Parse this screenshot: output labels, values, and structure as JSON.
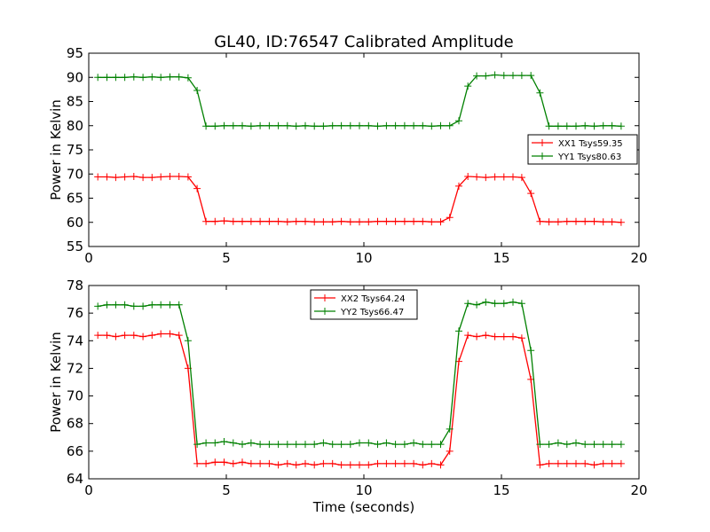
{
  "chart_data": {
    "type": "line",
    "title": "GL40, ID:76547 Calibrated Amplitude",
    "panels": [
      {
        "id": "top",
        "ylabel": "Power in Kelvin",
        "xlabel": "",
        "xlim": [
          0,
          20
        ],
        "ylim": [
          55,
          95
        ],
        "xticks": [
          0,
          5,
          10,
          15,
          20
        ],
        "yticks": [
          55,
          60,
          65,
          70,
          75,
          80,
          85,
          90,
          95
        ],
        "grid": false,
        "legend_position": "center-right",
        "series": [
          {
            "name": "XX1 Tsys59.35",
            "color": "#ff0000",
            "x": [
              0.33,
              0.66,
              0.98,
              1.31,
              1.64,
              1.97,
              2.3,
              2.62,
              2.95,
              3.28,
              3.61,
              3.94,
              4.26,
              4.59,
              4.92,
              5.25,
              5.58,
              5.9,
              6.23,
              6.56,
              6.89,
              7.22,
              7.54,
              7.87,
              8.2,
              8.53,
              8.86,
              9.18,
              9.51,
              9.84,
              10.17,
              10.5,
              10.82,
              11.15,
              11.48,
              11.81,
              12.14,
              12.46,
              12.79,
              13.12,
              13.45,
              13.78,
              14.1,
              14.43,
              14.76,
              15.09,
              15.42,
              15.74,
              16.07,
              16.4,
              16.73,
              17.06,
              17.38,
              17.71,
              18.04,
              18.37,
              18.7,
              19.02,
              19.35
            ],
            "y": [
              69.4,
              69.4,
              69.3,
              69.4,
              69.5,
              69.3,
              69.3,
              69.4,
              69.5,
              69.5,
              69.4,
              67.0,
              60.2,
              60.2,
              60.3,
              60.2,
              60.2,
              60.2,
              60.2,
              60.2,
              60.2,
              60.1,
              60.2,
              60.2,
              60.1,
              60.1,
              60.1,
              60.2,
              60.1,
              60.1,
              60.1,
              60.2,
              60.2,
              60.2,
              60.2,
              60.2,
              60.2,
              60.1,
              60.1,
              61.0,
              67.5,
              69.5,
              69.4,
              69.3,
              69.4,
              69.4,
              69.4,
              69.3,
              66.0,
              60.2,
              60.1,
              60.1,
              60.2,
              60.2,
              60.2,
              60.2,
              60.1,
              60.1,
              60.0
            ],
            "x_order_note": ""
          },
          {
            "name": "YY1 Tsys80.63",
            "color": "#008000",
            "x": [
              0.33,
              0.66,
              0.98,
              1.31,
              1.64,
              1.97,
              2.3,
              2.62,
              2.95,
              3.28,
              3.61,
              3.94,
              4.26,
              4.59,
              4.92,
              5.25,
              5.58,
              5.9,
              6.23,
              6.56,
              6.89,
              7.22,
              7.54,
              7.87,
              8.2,
              8.53,
              8.86,
              9.18,
              9.51,
              9.84,
              10.17,
              10.5,
              10.82,
              11.15,
              11.48,
              11.81,
              12.14,
              12.46,
              12.79,
              13.12,
              13.45,
              13.78,
              14.1,
              14.43,
              14.76,
              15.09,
              15.42,
              15.74,
              16.07,
              16.4,
              16.73,
              17.06,
              17.38,
              17.71,
              18.04,
              18.37,
              18.7,
              19.02,
              19.35
            ],
            "y": [
              90.0,
              90.0,
              90.0,
              90.0,
              90.1,
              90.0,
              90.1,
              90.0,
              90.1,
              90.1,
              89.9,
              87.3,
              79.9,
              79.9,
              80.0,
              80.0,
              80.0,
              79.9,
              80.0,
              80.0,
              80.0,
              80.0,
              79.9,
              80.0,
              79.9,
              79.9,
              80.0,
              80.0,
              80.0,
              80.0,
              80.0,
              79.9,
              80.0,
              80.0,
              80.0,
              80.0,
              80.0,
              79.9,
              80.0,
              80.0,
              81.0,
              88.2,
              90.3,
              90.3,
              90.5,
              90.4,
              90.4,
              90.4,
              90.4,
              86.8,
              79.9,
              79.9,
              79.9,
              79.9,
              80.0,
              79.9,
              80.0,
              80.0,
              79.9
            ],
            "x_order_note": ""
          }
        ]
      },
      {
        "id": "bottom",
        "ylabel": "Power in Kelvin",
        "xlabel": "Time (seconds)",
        "xlim": [
          0,
          20
        ],
        "ylim": [
          64,
          78
        ],
        "xticks": [
          0,
          5,
          10,
          15,
          20
        ],
        "yticks": [
          64,
          66,
          68,
          70,
          72,
          74,
          76,
          78
        ],
        "grid": false,
        "legend_position": "top-center",
        "series": [
          {
            "name": "XX2 Tsys64.24",
            "color": "#ff0000",
            "x": [
              0.33,
              0.66,
              0.98,
              1.31,
              1.64,
              1.97,
              2.3,
              2.62,
              2.95,
              3.28,
              3.61,
              3.94,
              4.26,
              4.59,
              4.92,
              5.25,
              5.58,
              5.9,
              6.23,
              6.56,
              6.89,
              7.22,
              7.54,
              7.87,
              8.2,
              8.53,
              8.86,
              9.18,
              9.51,
              9.84,
              10.17,
              10.5,
              10.82,
              11.15,
              11.48,
              11.81,
              12.14,
              12.46,
              12.79,
              13.12,
              13.45,
              13.78,
              14.1,
              14.43,
              14.76,
              15.09,
              15.42,
              15.74,
              16.07,
              16.4,
              16.73,
              17.06,
              17.38,
              17.71,
              18.04,
              18.37,
              18.7,
              19.02,
              19.35
            ],
            "y": [
              74.4,
              74.4,
              74.3,
              74.4,
              74.4,
              74.3,
              74.4,
              74.5,
              74.5,
              74.4,
              72.0,
              65.1,
              65.1,
              65.2,
              65.2,
              65.1,
              65.2,
              65.1,
              65.1,
              65.1,
              65.0,
              65.1,
              65.0,
              65.1,
              65.0,
              65.1,
              65.1,
              65.0,
              65.0,
              65.0,
              65.0,
              65.1,
              65.1,
              65.1,
              65.1,
              65.1,
              65.0,
              65.1,
              65.0,
              66.0,
              72.5,
              74.4,
              74.3,
              74.4,
              74.3,
              74.3,
              74.3,
              74.2,
              71.2,
              65.0,
              65.1,
              65.1,
              65.1,
              65.1,
              65.1,
              65.0,
              65.1,
              65.1,
              65.1
            ],
            "x_order_note": ""
          },
          {
            "name": "YY2 Tsys66.47",
            "color": "#008000",
            "x": [
              0.33,
              0.66,
              0.98,
              1.31,
              1.64,
              1.97,
              2.3,
              2.62,
              2.95,
              3.28,
              3.61,
              3.94,
              4.26,
              4.59,
              4.92,
              5.25,
              5.58,
              5.9,
              6.23,
              6.56,
              6.89,
              7.22,
              7.54,
              7.87,
              8.2,
              8.53,
              8.86,
              9.18,
              9.51,
              9.84,
              10.17,
              10.5,
              10.82,
              11.15,
              11.48,
              11.81,
              12.14,
              12.46,
              12.79,
              13.12,
              13.45,
              13.78,
              14.1,
              14.43,
              14.76,
              15.09,
              15.42,
              15.74,
              16.07,
              16.4,
              16.73,
              17.06,
              17.38,
              17.71,
              18.04,
              18.37,
              18.7,
              19.02,
              19.35
            ],
            "y": [
              76.5,
              76.6,
              76.6,
              76.6,
              76.5,
              76.5,
              76.6,
              76.6,
              76.6,
              76.6,
              74.0,
              66.5,
              66.6,
              66.6,
              66.7,
              66.6,
              66.5,
              66.6,
              66.5,
              66.5,
              66.5,
              66.5,
              66.5,
              66.5,
              66.5,
              66.6,
              66.5,
              66.5,
              66.5,
              66.6,
              66.6,
              66.5,
              66.6,
              66.5,
              66.5,
              66.6,
              66.5,
              66.5,
              66.5,
              67.6,
              74.7,
              76.7,
              76.6,
              76.8,
              76.7,
              76.7,
              76.8,
              76.7,
              73.3,
              66.5,
              66.5,
              66.6,
              66.5,
              66.6,
              66.5,
              66.5,
              66.5,
              66.5,
              66.5
            ],
            "x_order_note": ""
          }
        ]
      }
    ],
    "colors": {
      "xx": "#ff0000",
      "yy": "#008000"
    }
  }
}
